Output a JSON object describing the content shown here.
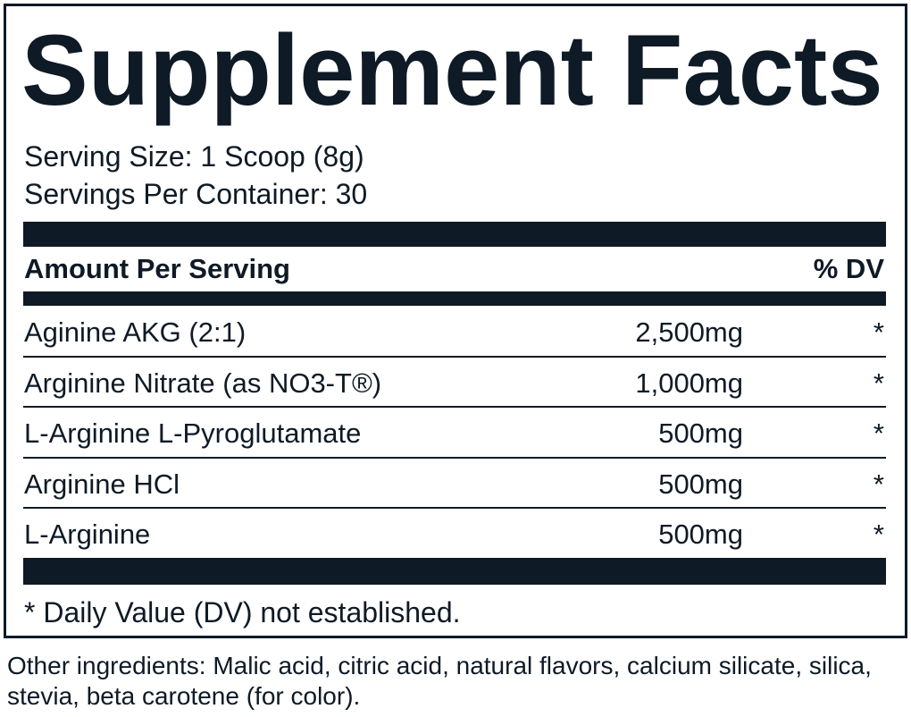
{
  "header": {
    "title": "Supplement Facts",
    "serving_size": "Serving Size: 1 Scoop (8g)",
    "servings_per_container": "Servings Per Container: 30"
  },
  "table": {
    "header": [
      "Amount Per Serving",
      "% DV"
    ],
    "rows": [
      [
        "Aginine AKG (2:1)",
        "2,500mg",
        "*"
      ],
      [
        "Arginine Nitrate (as NO3-T®)",
        "1,000mg",
        "*"
      ],
      [
        "L-Arginine L-Pyroglutamate",
        "500mg",
        "*"
      ],
      [
        "Arginine HCl",
        "500mg",
        "*"
      ],
      [
        "L-Arginine",
        "500mg",
        "*"
      ]
    ]
  },
  "footnote": "* Daily Value (DV) not established.",
  "other_ingredients": "Other ingredients: Malic acid, citric acid, natural flavors, calcium silicate, silica, stevia, beta carotene (for color)."
}
